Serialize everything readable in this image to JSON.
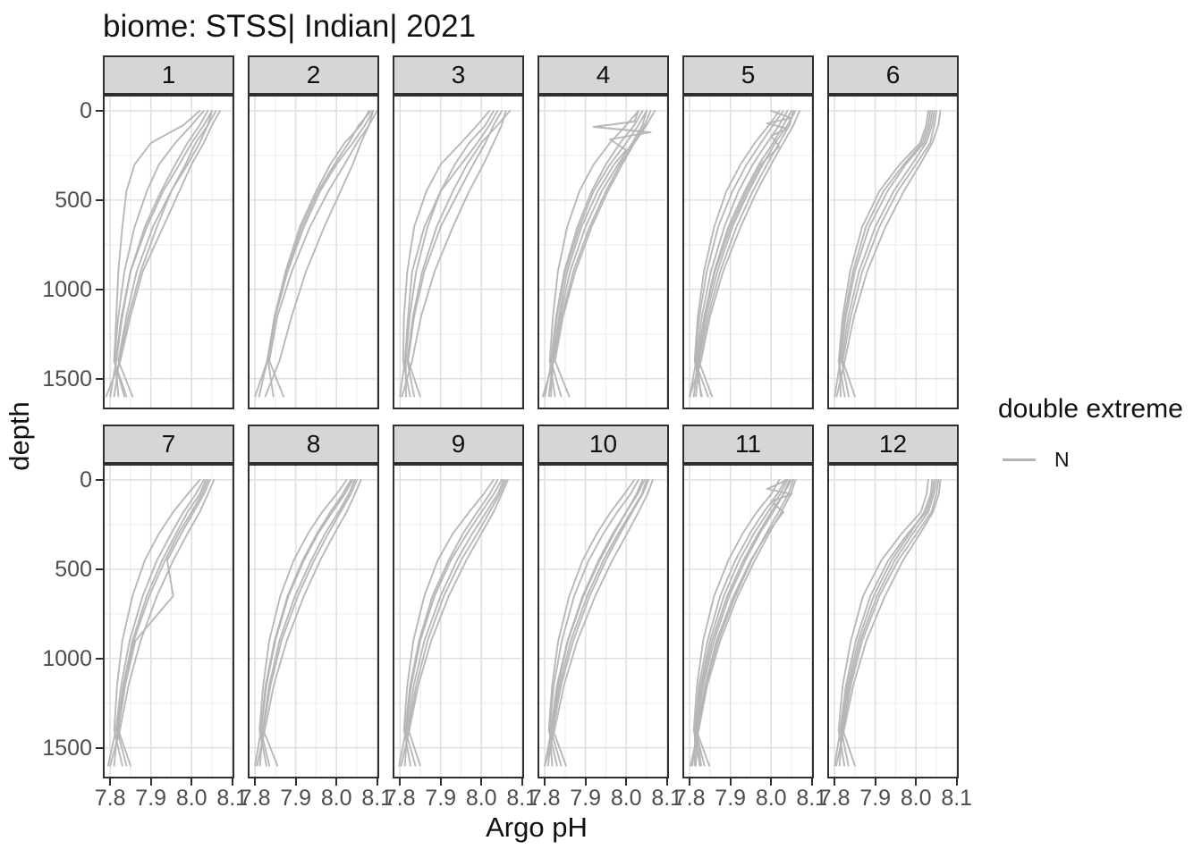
{
  "chart_data": {
    "type": "line",
    "title": "biome: STSS| Indian| 2021",
    "xlabel": "Argo pH",
    "ylabel": "depth",
    "x_ticks": [
      7.8,
      7.9,
      8.0,
      8.1
    ],
    "x_tick_labels": [
      "7.8",
      "7.9",
      "8.0",
      "8.1"
    ],
    "x_minor": [
      7.85,
      7.95,
      8.05
    ],
    "xlim": [
      7.782,
      8.105
    ],
    "y_ticks": [
      0,
      500,
      1000,
      1500
    ],
    "y_tick_labels": [
      "0",
      "500",
      "1000",
      "1500"
    ],
    "y_minor": [
      250,
      750,
      1250
    ],
    "ylim": [
      -90,
      1672
    ],
    "y_axis_reversed": true,
    "grid": "major+minor",
    "line_color": "#b4b4b4",
    "legend": {
      "title": "double extreme",
      "position": "right",
      "items": [
        {
          "label": "N",
          "color": "#b4b4b4"
        }
      ]
    },
    "profile_depths": [
      0,
      80,
      180,
      300,
      450,
      650,
      900,
      1150,
      1400,
      1600
    ],
    "facets": [
      {
        "label": "1",
        "profiles": [
          [
            8.05,
            8.03,
            8.0,
            7.97,
            7.93,
            7.89,
            7.85,
            7.83,
            7.815,
            7.8
          ],
          [
            8.06,
            8.04,
            8.02,
            7.99,
            7.95,
            7.905,
            7.865,
            7.84,
            7.82,
            7.855
          ],
          [
            8.03,
            8.0,
            7.96,
            7.92,
            7.89,
            7.86,
            7.835,
            7.82,
            7.81,
            7.84
          ],
          [
            8.07,
            8.05,
            8.03,
            8.0,
            7.97,
            7.93,
            7.88,
            7.85,
            7.825,
            7.79
          ],
          [
            8.02,
            7.98,
            7.9,
            7.86,
            7.84,
            7.83,
            7.82,
            7.815,
            7.81,
            7.835
          ],
          [
            8.04,
            8.02,
            7.99,
            7.96,
            7.925,
            7.885,
            7.85,
            7.828,
            7.813,
            7.82
          ],
          [
            8.05,
            8.04,
            8.01,
            7.985,
            7.95,
            7.915,
            7.875,
            7.845,
            7.822,
            7.81
          ]
        ]
      },
      {
        "label": "2",
        "profiles": [
          [
            8.09,
            8.07,
            8.04,
            8.0,
            7.96,
            7.92,
            7.88,
            7.85,
            7.83,
            7.8
          ],
          [
            8.1,
            8.08,
            8.05,
            8.02,
            7.98,
            7.935,
            7.89,
            7.855,
            7.835,
            7.87
          ],
          [
            8.08,
            8.06,
            8.02,
            7.985,
            7.95,
            7.91,
            7.875,
            7.848,
            7.83,
            7.81
          ],
          [
            8.09,
            8.08,
            8.06,
            8.04,
            8.01,
            7.97,
            7.925,
            7.89,
            7.86,
            7.825
          ],
          [
            8.085,
            8.055,
            8.03,
            7.995,
            7.955,
            7.915,
            7.878,
            7.85,
            7.832,
            7.845
          ]
        ]
      },
      {
        "label": "3",
        "profiles": [
          [
            8.04,
            8.02,
            7.99,
            7.95,
            7.9,
            7.86,
            7.83,
            7.82,
            7.812,
            7.8
          ],
          [
            8.05,
            8.03,
            8.01,
            7.98,
            7.945,
            7.9,
            7.86,
            7.835,
            7.82,
            7.85
          ],
          [
            8.02,
            7.99,
            7.95,
            7.9,
            7.865,
            7.835,
            7.818,
            7.81,
            7.808,
            7.825
          ],
          [
            8.06,
            8.05,
            8.03,
            8.005,
            7.97,
            7.93,
            7.885,
            7.852,
            7.83,
            7.805
          ],
          [
            8.07,
            8.04,
            8.0,
            7.965,
            7.93,
            7.89,
            7.855,
            7.832,
            7.818,
            7.835
          ],
          [
            8.03,
            8.01,
            7.97,
            7.935,
            7.9,
            7.868,
            7.84,
            7.824,
            7.814,
            7.815
          ]
        ]
      },
      {
        "label": "4",
        "profiles": [
          {
            "d": [
              0,
              60,
              90,
              120,
              160,
              220,
              300,
              450,
              650,
              900,
              1150,
              1400,
              1600
            ],
            "ph": [
              8.03,
              8.02,
              7.92,
              8.06,
              7.96,
              8.0,
              7.97,
              7.93,
              7.89,
              7.855,
              7.835,
              7.82,
              7.81
            ]
          },
          [
            8.05,
            8.03,
            8.0,
            7.96,
            7.92,
            7.885,
            7.85,
            7.83,
            7.817,
            7.8
          ],
          [
            8.06,
            8.045,
            8.02,
            7.99,
            7.955,
            7.915,
            7.875,
            7.845,
            7.825,
            7.86
          ],
          [
            8.03,
            8.0,
            7.96,
            7.92,
            7.885,
            7.855,
            7.832,
            7.82,
            7.812,
            7.825
          ],
          [
            8.07,
            8.05,
            8.02,
            7.985,
            7.95,
            7.91,
            7.87,
            7.842,
            7.822,
            7.795
          ],
          [
            8.04,
            8.02,
            7.985,
            7.95,
            7.915,
            7.88,
            7.848,
            7.828,
            7.815,
            7.84
          ],
          [
            8.05,
            8.04,
            8.015,
            7.98,
            7.94,
            7.9,
            7.862,
            7.838,
            7.82,
            7.815
          ]
        ]
      },
      {
        "label": "5",
        "profiles": [
          {
            "d": [
              0,
              40,
              70,
              100,
              140,
              200,
              300,
              450,
              650,
              900,
              1150,
              1400,
              1600
            ],
            "ph": [
              8.0,
              8.05,
              7.99,
              8.04,
              8.0,
              8.02,
              7.975,
              7.94,
              7.9,
              7.862,
              7.836,
              7.818,
              7.828
            ]
          },
          [
            8.04,
            8.02,
            7.99,
            7.955,
            7.92,
            7.885,
            7.852,
            7.83,
            7.816,
            7.8
          ],
          [
            8.06,
            8.04,
            8.01,
            7.98,
            7.945,
            7.905,
            7.868,
            7.84,
            7.822,
            7.855
          ],
          [
            8.02,
            7.995,
            7.96,
            7.925,
            7.89,
            7.86,
            7.835,
            7.82,
            7.812,
            7.83
          ],
          [
            8.07,
            8.055,
            8.03,
            8.0,
            7.965,
            7.925,
            7.882,
            7.85,
            7.828,
            7.8
          ],
          [
            8.05,
            8.03,
            8.005,
            7.97,
            7.935,
            7.895,
            7.86,
            7.836,
            7.82,
            7.81
          ],
          [
            8.03,
            8.005,
            7.975,
            7.94,
            7.905,
            7.87,
            7.842,
            7.824,
            7.813,
            7.845
          ],
          [
            8.055,
            8.045,
            8.02,
            7.99,
            7.955,
            7.915,
            7.875,
            7.845,
            7.824,
            7.815
          ]
        ]
      },
      {
        "label": "6",
        "profiles": [
          [
            8.04,
            8.035,
            8.02,
            7.975,
            7.93,
            7.885,
            7.85,
            7.828,
            7.814,
            7.8
          ],
          [
            8.05,
            8.045,
            8.035,
            8.0,
            7.955,
            7.91,
            7.868,
            7.84,
            7.82,
            7.85
          ],
          [
            8.03,
            8.025,
            8.01,
            7.96,
            7.91,
            7.868,
            7.838,
            7.82,
            7.81,
            7.825
          ],
          [
            8.06,
            8.055,
            8.04,
            8.01,
            7.97,
            7.925,
            7.88,
            7.848,
            7.825,
            7.805
          ],
          [
            8.045,
            8.04,
            8.025,
            7.99,
            7.945,
            7.9,
            7.86,
            7.834,
            7.817,
            7.835
          ],
          [
            8.035,
            8.03,
            8.015,
            7.97,
            7.92,
            7.877,
            7.845,
            7.824,
            7.812,
            7.815
          ]
        ]
      },
      {
        "label": "7",
        "profiles": [
          [
            8.03,
            8.01,
            7.98,
            7.95,
            7.915,
            7.88,
            7.848,
            7.827,
            7.814,
            7.795
          ],
          [
            8.045,
            8.03,
            8.005,
            7.975,
            7.94,
            7.955,
            7.862,
            7.837,
            7.82,
            7.85
          ],
          [
            8.02,
            7.99,
            7.955,
            7.92,
            7.885,
            7.855,
            7.83,
            7.817,
            7.81,
            7.83
          ],
          [
            8.055,
            8.04,
            8.02,
            7.99,
            7.955,
            7.915,
            7.875,
            7.845,
            7.824,
            7.8
          ],
          [
            8.035,
            8.02,
            7.99,
            7.962,
            7.928,
            7.89,
            7.855,
            7.832,
            7.817,
            7.84
          ],
          [
            8.04,
            8.025,
            8.0,
            7.968,
            7.935,
            7.896,
            7.858,
            7.834,
            7.818,
            7.81
          ]
        ]
      },
      {
        "label": "8",
        "profiles": [
          [
            8.04,
            8.02,
            7.99,
            7.955,
            7.92,
            7.882,
            7.85,
            7.828,
            7.815,
            7.8
          ],
          [
            8.05,
            8.035,
            8.01,
            7.98,
            7.945,
            7.905,
            7.865,
            7.838,
            7.82,
            7.855
          ],
          [
            8.025,
            8.0,
            7.965,
            7.93,
            7.895,
            7.862,
            7.835,
            7.82,
            7.811,
            7.828
          ],
          [
            8.06,
            8.045,
            8.025,
            7.995,
            7.96,
            7.92,
            7.878,
            7.846,
            7.824,
            7.805
          ],
          [
            8.035,
            8.015,
            7.985,
            7.952,
            7.917,
            7.88,
            7.848,
            7.826,
            7.814,
            7.835
          ],
          [
            8.045,
            8.03,
            8.005,
            7.972,
            7.938,
            7.898,
            7.86,
            7.835,
            7.819,
            7.812
          ]
        ]
      },
      {
        "label": "9",
        "profiles": [
          [
            8.05,
            8.03,
            8.0,
            7.965,
            7.925,
            7.885,
            7.85,
            7.828,
            7.815,
            7.798
          ],
          [
            8.06,
            8.045,
            8.02,
            7.99,
            7.95,
            7.908,
            7.868,
            7.84,
            7.821,
            7.85
          ],
          [
            8.03,
            8.005,
            7.97,
            7.93,
            7.893,
            7.86,
            7.833,
            7.818,
            7.81,
            7.826
          ],
          [
            8.065,
            8.05,
            8.03,
            8.0,
            7.963,
            7.92,
            7.877,
            7.845,
            7.823,
            7.803
          ],
          [
            8.04,
            8.02,
            7.99,
            7.955,
            7.92,
            7.88,
            7.847,
            7.825,
            7.813,
            7.838
          ],
          [
            8.055,
            8.04,
            8.012,
            7.978,
            7.94,
            7.9,
            7.86,
            7.834,
            7.818,
            7.812
          ]
        ]
      },
      {
        "label": "10",
        "profiles": [
          [
            8.04,
            8.025,
            8.0,
            7.97,
            7.935,
            7.895,
            7.857,
            7.832,
            7.816,
            7.8
          ],
          [
            8.055,
            8.04,
            8.015,
            7.985,
            7.95,
            7.91,
            7.87,
            7.84,
            7.82,
            7.852
          ],
          [
            8.02,
            7.995,
            7.962,
            7.928,
            7.893,
            7.86,
            7.833,
            7.818,
            7.81,
            7.83
          ],
          [
            8.065,
            8.052,
            8.03,
            8.002,
            7.966,
            7.924,
            7.88,
            7.847,
            7.824,
            7.8
          ],
          [
            8.045,
            8.028,
            8.0,
            7.967,
            7.932,
            7.893,
            7.856,
            7.83,
            7.815,
            7.84
          ],
          [
            8.03,
            8.01,
            7.978,
            7.944,
            7.908,
            7.872,
            7.842,
            7.822,
            7.812,
            7.818
          ],
          [
            8.05,
            8.038,
            8.012,
            7.98,
            7.944,
            7.904,
            7.864,
            7.836,
            7.819,
            7.808
          ]
        ]
      },
      {
        "label": "11",
        "profiles": [
          {
            "d": [
              0,
              50,
              80,
              120,
              180,
              300,
              450,
              650,
              900,
              1150,
              1400,
              1600
            ],
            "ph": [
              8.04,
              7.99,
              8.05,
              8.0,
              8.03,
              7.99,
              7.95,
              7.908,
              7.866,
              7.838,
              7.819,
              7.806
            ]
          },
          [
            8.05,
            8.03,
            8.0,
            7.968,
            7.932,
            7.892,
            7.855,
            7.83,
            7.816,
            7.848
          ],
          [
            8.02,
            8.0,
            7.965,
            7.93,
            7.895,
            7.86,
            7.833,
            7.818,
            7.81,
            7.825
          ],
          [
            8.06,
            8.048,
            8.025,
            7.995,
            7.96,
            7.918,
            7.875,
            7.843,
            7.822,
            7.802
          ],
          [
            8.04,
            8.022,
            7.992,
            7.958,
            7.922,
            7.884,
            7.85,
            7.827,
            7.814,
            7.836
          ],
          [
            8.035,
            8.015,
            7.982,
            7.948,
            7.912,
            7.875,
            7.844,
            7.823,
            7.813,
            7.812
          ],
          [
            8.055,
            8.042,
            8.018,
            7.988,
            7.952,
            7.912,
            7.87,
            7.84,
            7.82,
            7.815
          ],
          [
            8.045,
            8.03,
            8.005,
            7.972,
            7.937,
            7.897,
            7.86,
            7.833,
            7.817,
            7.828
          ]
        ]
      },
      {
        "label": "12",
        "profiles": [
          [
            8.045,
            8.04,
            8.025,
            7.98,
            7.932,
            7.888,
            7.852,
            7.828,
            7.814,
            7.8
          ],
          [
            8.055,
            8.05,
            8.038,
            8.002,
            7.956,
            7.91,
            7.868,
            7.84,
            7.82,
            7.85
          ],
          [
            8.03,
            8.026,
            8.012,
            7.965,
            7.915,
            7.87,
            7.84,
            7.82,
            7.81,
            7.824
          ],
          [
            8.06,
            8.056,
            8.042,
            8.01,
            7.968,
            7.924,
            7.878,
            7.846,
            7.823,
            7.804
          ],
          [
            8.04,
            8.036,
            8.02,
            7.985,
            7.94,
            7.896,
            7.858,
            7.832,
            7.816,
            7.834
          ],
          [
            8.05,
            8.044,
            8.03,
            7.992,
            7.948,
            7.904,
            7.863,
            7.836,
            7.818,
            7.812
          ]
        ]
      }
    ]
  },
  "colors": {
    "strip_background": "#d6d6d6",
    "panel_border": "#2f2f2f",
    "grid_major": "#e0e0e0",
    "grid_minor": "#eeeeee",
    "axis_text": "#4d4d4d",
    "text": "#111111",
    "background": "#ffffff"
  }
}
